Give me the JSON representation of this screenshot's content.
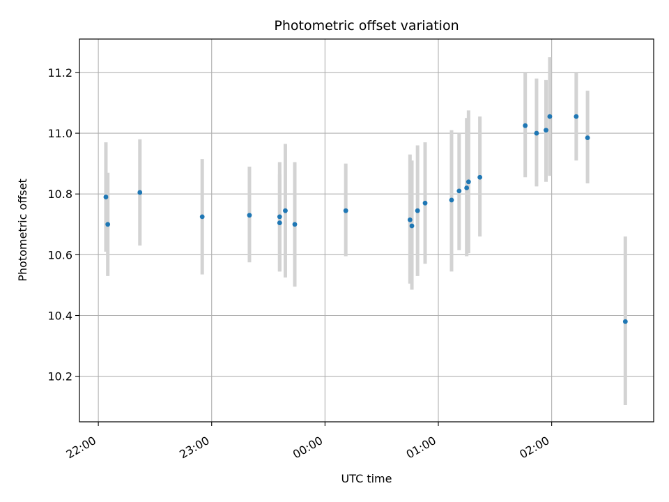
{
  "chart_data": {
    "type": "scatter",
    "title": "Photometric offset variation",
    "xlabel": "UTC time",
    "ylabel": "Photometric offset",
    "xlim": [
      "21:50",
      "02:54"
    ],
    "ylim": [
      10.05,
      11.31
    ],
    "x_ticks": [
      "22:00",
      "23:00",
      "00:00",
      "01:00",
      "02:00"
    ],
    "y_ticks": [
      10.2,
      10.4,
      10.6,
      10.8,
      11.0,
      11.2
    ],
    "grid": true,
    "legend": "none",
    "marker_color": "#1f77b4",
    "errorbar_color": "#d3d3d3",
    "points": [
      {
        "t": "22:04",
        "y": 10.79,
        "lo": 10.61,
        "hi": 10.97
      },
      {
        "t": "22:05",
        "y": 10.7,
        "lo": 10.53,
        "hi": 10.87
      },
      {
        "t": "22:22",
        "y": 10.805,
        "lo": 10.63,
        "hi": 10.98
      },
      {
        "t": "22:55",
        "y": 10.725,
        "lo": 10.535,
        "hi": 10.915
      },
      {
        "t": "23:20",
        "y": 10.73,
        "lo": 10.575,
        "hi": 10.89
      },
      {
        "t": "23:36",
        "y": 10.725,
        "lo": 10.545,
        "hi": 10.905
      },
      {
        "t": "23:36",
        "y": 10.705,
        "lo": 10.545,
        "hi": 10.865
      },
      {
        "t": "23:39",
        "y": 10.745,
        "lo": 10.525,
        "hi": 10.965
      },
      {
        "t": "23:44",
        "y": 10.7,
        "lo": 10.495,
        "hi": 10.905
      },
      {
        "t": "00:11",
        "y": 10.745,
        "lo": 10.595,
        "hi": 10.9
      },
      {
        "t": "00:45",
        "y": 10.715,
        "lo": 10.505,
        "hi": 10.93
      },
      {
        "t": "00:46",
        "y": 10.695,
        "lo": 10.485,
        "hi": 10.91
      },
      {
        "t": "00:49",
        "y": 10.745,
        "lo": 10.53,
        "hi": 10.96
      },
      {
        "t": "00:53",
        "y": 10.77,
        "lo": 10.57,
        "hi": 10.97
      },
      {
        "t": "01:07",
        "y": 10.78,
        "lo": 10.545,
        "hi": 11.01
      },
      {
        "t": "01:11",
        "y": 10.81,
        "lo": 10.615,
        "hi": 11.0
      },
      {
        "t": "01:15",
        "y": 10.82,
        "lo": 10.595,
        "hi": 11.05
      },
      {
        "t": "01:16",
        "y": 10.84,
        "lo": 10.605,
        "hi": 11.075
      },
      {
        "t": "01:22",
        "y": 10.855,
        "lo": 10.66,
        "hi": 11.055
      },
      {
        "t": "01:46",
        "y": 11.025,
        "lo": 10.855,
        "hi": 11.2
      },
      {
        "t": "01:52",
        "y": 11.0,
        "lo": 10.825,
        "hi": 11.18
      },
      {
        "t": "01:57",
        "y": 11.01,
        "lo": 10.84,
        "hi": 11.175
      },
      {
        "t": "01:59",
        "y": 11.055,
        "lo": 10.86,
        "hi": 11.25
      },
      {
        "t": "02:13",
        "y": 11.055,
        "lo": 10.91,
        "hi": 11.2
      },
      {
        "t": "02:19",
        "y": 10.985,
        "lo": 10.835,
        "hi": 11.14
      },
      {
        "t": "02:39",
        "y": 10.38,
        "lo": 10.105,
        "hi": 10.66
      }
    ]
  }
}
